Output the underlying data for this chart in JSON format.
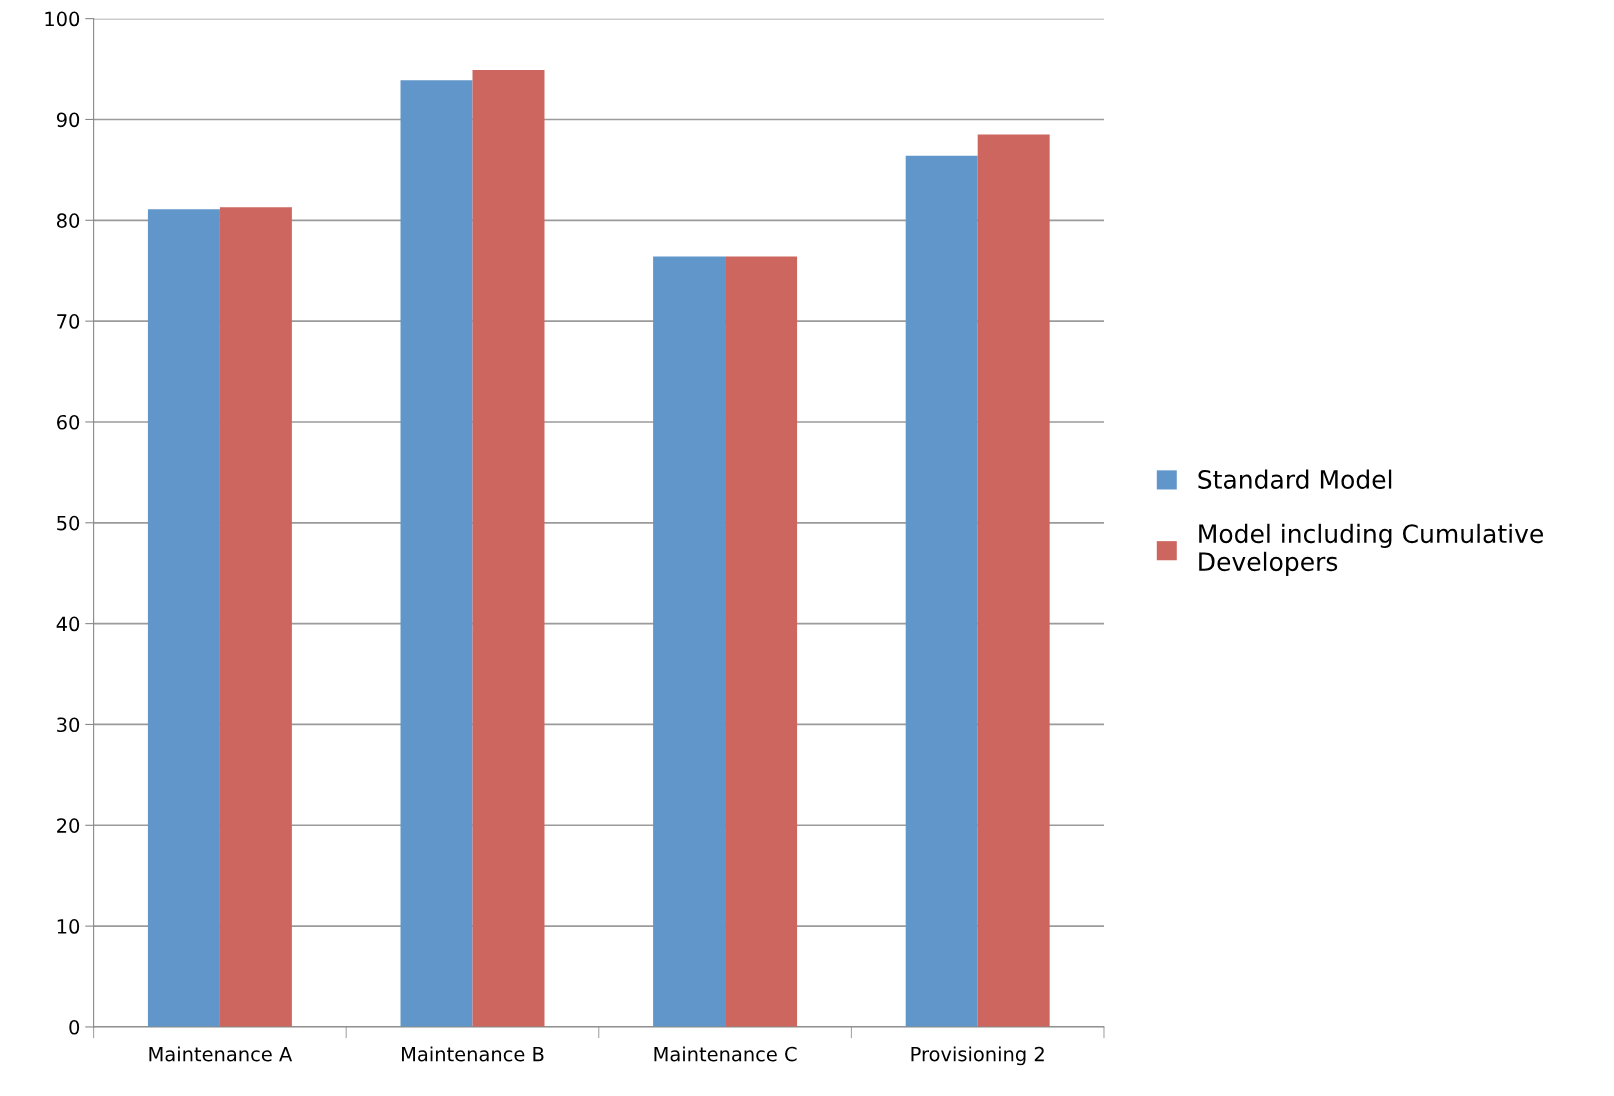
{
  "chart_data": {
    "type": "bar",
    "categories": [
      "Maintenance A",
      "Maintenance B",
      "Maintenance C",
      "Provisioning 2"
    ],
    "series": [
      {
        "name": "Standard Model",
        "color": "#6096c9",
        "values": [
          81.1,
          93.9,
          76.4,
          86.4
        ]
      },
      {
        "name": "Model including Cumulative\nDevelopers",
        "color": "#cd665e",
        "values": [
          81.3,
          94.9,
          76.4,
          88.5
        ]
      }
    ],
    "ylim": [
      0,
      100
    ],
    "yticks": [
      0,
      10,
      20,
      30,
      40,
      50,
      60,
      70,
      80,
      90,
      100
    ],
    "grid": "y",
    "legend": "right"
  }
}
